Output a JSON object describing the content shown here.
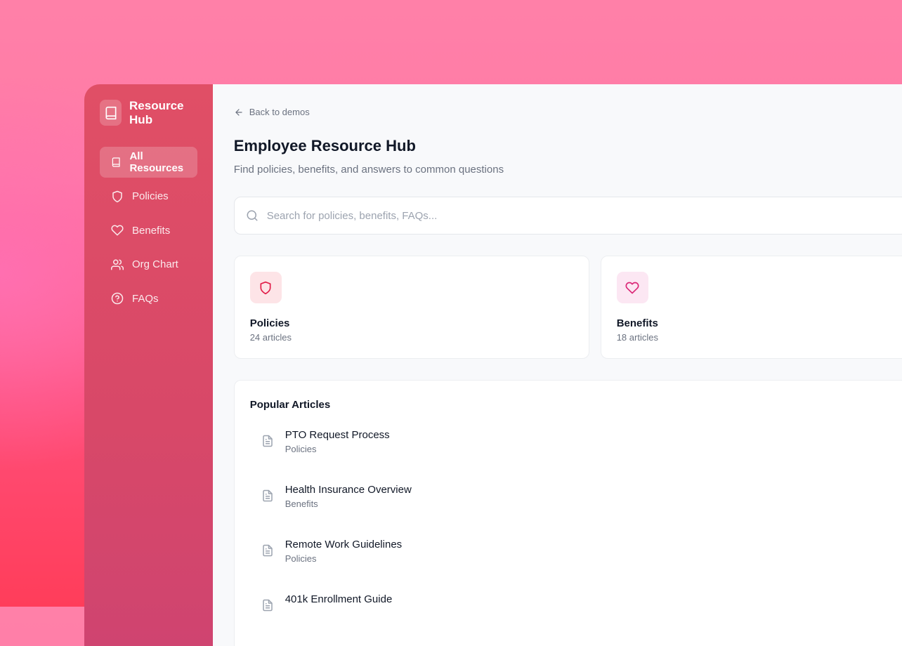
{
  "sidebar": {
    "brand": "Resource Hub",
    "items": [
      {
        "label": "All Resources",
        "icon": "book-icon",
        "active": true
      },
      {
        "label": "Policies",
        "icon": "shield-icon"
      },
      {
        "label": "Benefits",
        "icon": "heart-icon"
      },
      {
        "label": "Org Chart",
        "icon": "users-icon"
      },
      {
        "label": "FAQs",
        "icon": "help-circle-icon"
      }
    ]
  },
  "header": {
    "back": "Back to demos",
    "title": "Employee Resource Hub",
    "subtitle": "Find policies, benefits, and answers to common questions"
  },
  "search": {
    "placeholder": "Search for policies, benefits, FAQs..."
  },
  "cards": [
    {
      "title": "Policies",
      "count": "24 articles",
      "icon": "shield-icon",
      "color": "#e11d48",
      "bg": "#fde4e7"
    },
    {
      "title": "Benefits",
      "count": "18 articles",
      "icon": "heart-icon",
      "color": "#db2777",
      "bg": "#fce7f3"
    }
  ],
  "popular": {
    "title": "Popular Articles",
    "articles": [
      {
        "title": "PTO Request Process",
        "category": "Policies"
      },
      {
        "title": "Health Insurance Overview",
        "category": "Benefits"
      },
      {
        "title": "Remote Work Guidelines",
        "category": "Policies"
      },
      {
        "title": "401k Enrollment Guide",
        "category": ""
      }
    ]
  }
}
